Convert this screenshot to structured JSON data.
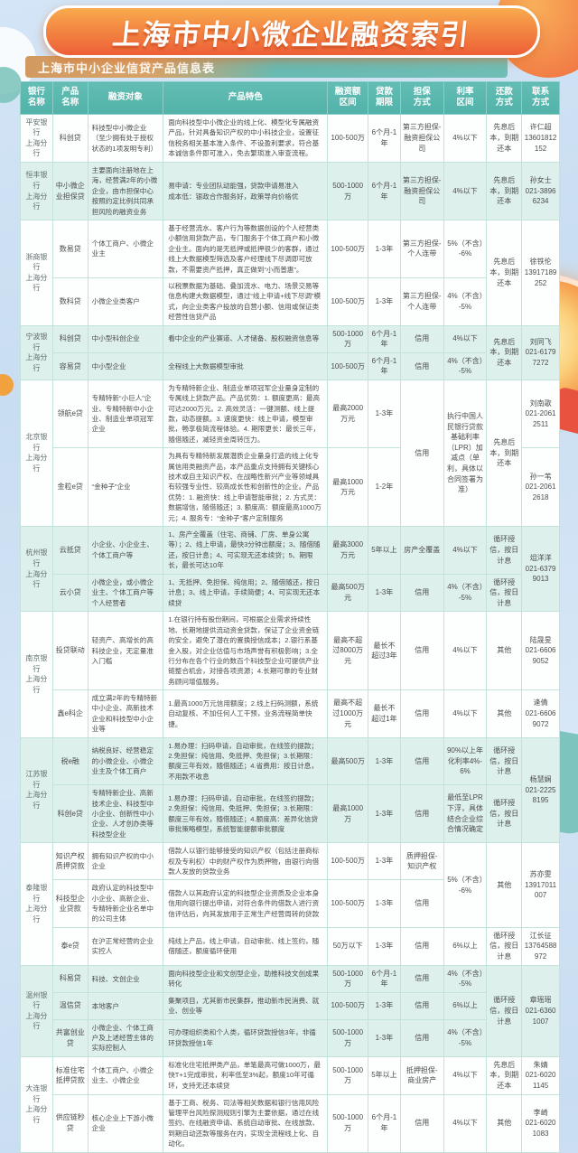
{
  "page": {
    "title": "上海市中小微企业融资索引",
    "caption": "上海市中小企业信贷产品信息表"
  },
  "accent_colors": {
    "banner_orange": "#ee5f38",
    "header_teal": "#57b6ad",
    "tint_row": "#def0ec",
    "page_blue": "#cfe2f4"
  },
  "table": {
    "headers": [
      "银行\n名称",
      "产品\n名称",
      "融资对象",
      "产品特色",
      "融资额\n区间",
      "贷款\n期限",
      "担保\n方式",
      "利率\n区间",
      "还款\n方式",
      "联系\n方式"
    ],
    "column_keys": [
      "product",
      "target",
      "features",
      "amount",
      "term",
      "guarantee",
      "rate",
      "repay",
      "contact"
    ],
    "banks": [
      {
        "name": "平安银行\n上海分行",
        "tint": false,
        "rows": [
          [
            "科创贷",
            "科技型中小微企业\n（至少拥有处于授权状态的1项发明专利）",
            "面向科技型中小微企业的线上化、模型化专属融资产品，针对具备知识产权的中小科技企业，设置征信税务相关基本准入条件、不设盈利要求，符合基本诚信条件即可准入，免去繁琐准入审查流程。",
            "100-500万",
            "6个月-1年",
            "第三方担保-\n融资担保公司",
            "4%以下",
            "先息后本，到期还本",
            "许仁超\n13601812152"
          ]
        ]
      },
      {
        "name": "恒丰银行\n上海分行",
        "tint": true,
        "rows": [
          [
            "中小微企业担保贷",
            "主要面向注册地在上海，经营满2年的小微企业，由市担保中心按照约定比例共同承担风险的融资业务",
            "易申请：专业团队动能强，贷款申请易准入\n成本低：银政合作服务好，政策导向价格优",
            "500-1000万",
            "6个月-1年",
            "第三方担保-\n融资担保公司",
            "4%以下",
            "先息后本，到期还本",
            "孙女士\n021-38966234"
          ]
        ]
      },
      {
        "name": "浙商银行\n上海分行",
        "tint": false,
        "rows": [
          [
            "数易贷",
            "个体工商户、小微企业主",
            "基于经营流水、客户行为等数据创设的个人经营类小额信用贷款产品，专门服务于个体工商户和小微企业主。面向的是无抵押或抵押很少的客群，通过线上大数据模型筛选及客户经理线下尽调即可放款，不需要资产抵押，真正做到“小而普惠”。",
            "100-500万",
            "1-3年",
            "第三方担保-\n个人连带",
            "5%（不含）-6%",
            {
              "t": "先息后本，到期还本",
              "rs": 2
            },
            {
              "t": "徐铁伦\n13917189252",
              "rs": 2
            }
          ],
          [
            "数科贷",
            "小微企业类客户",
            "以税票数据为基础、叠加流水、电力、场景交易等信息构建大数据模型，通过“线上申请+线下尽调”模式，向企业类客户投放的自营小额、信用或保证类经营性信贷产品",
            "100-500万",
            "1-3年",
            "第三方担保-\n个人连带",
            "4%（不含）-5%",
            null,
            null
          ]
        ]
      },
      {
        "name": "宁波银行\n上海分行",
        "tint": true,
        "rows": [
          [
            "科创贷",
            "中小型科创企业",
            "看中企业的产业赛道、人才储备、股权融资信息等",
            "500-1000万",
            "6个月-1年",
            "信用",
            "4%以下",
            {
              "t": "先息后本，到期还本",
              "rs": 2
            },
            {
              "t": "刘同飞\n021-61797272",
              "rs": 2
            }
          ],
          [
            "容易贷",
            "中小型企业",
            "全程线上大数据模型审批",
            "100-500万",
            "6个月-1年",
            "信用",
            "4%（不含）-5%",
            null,
            null
          ]
        ]
      },
      {
        "name": "北京银行\n上海分行",
        "tint": false,
        "rows": [
          [
            "领航e贷",
            "专精特新“小巨人”企业、专精特新中小企业、制造业单项冠军企业",
            "为专精特新企业、制造业单项冠军企业量身定制的专属线上贷款产品。产品优势：1. 额度更高：最高可达2000万元。2. 高效灵活：一键测额、线上提款，动态提额。3. 速度更快：线上申请，模型审批，畅享极简流程体验。4. 期限更长：最长三年，随借随还，减轻资金周转压力。",
            "最高2000万元",
            "1-3年",
            {
              "t": "信用",
              "rs": 2
            },
            {
              "t": "执行中国人民银行贷款基础利率（LPR）加减点（单利，具体以合同签署为准）",
              "rs": 2
            },
            {
              "t": "先息后本，到期还本",
              "rs": 2
            },
            "刘南歌\n021-20612511"
          ],
          [
            "金粒e贷",
            "“金种子”企业",
            "为具有专精特新发展潜质企业量身打造的线上化专属信用类融资产品，本产品重点支持拥有关键核心技术或自主知识产权、在战略性新兴产业等领域具有较强专业性、较高成长性和创新性的企业。产品优势：1. 融资快：线上申请智能审批；2. 方式灵：数据增信，随借随还；3. 额度高：额度最高1000万元；4. 服务专：“金种子”客户定制服务",
            "最高1000万元",
            "1-2年",
            null,
            null,
            null,
            "孙一苇\n021-20612618"
          ]
        ]
      },
      {
        "name": "杭州银行\n上海分行",
        "tint": true,
        "rows": [
          [
            "云抵贷",
            "小企业、小企业主、个体工商户等",
            "1、房产全覆盖（住宅、商铺、厂房、单身公寓等）；2、线上申请，最快3分钟出额度；3、随借随还，按日计息；4、可实现无还本续贷；5、期限长，最长可达10年",
            "最高3000万元",
            "5年以上",
            "房产全覆盖",
            "4%以下",
            "循环授信，按日计息",
            {
              "t": "俎洋洋\n021-63799013",
              "rs": 2
            }
          ],
          [
            "云小贷",
            "小微企业，或小微企业主、个体工商户等个人经营者",
            "1、无抵押、免担保、纯信用；2、随借随还，按日计息；3、线上申请，手续简便；4、可实现无还本续贷",
            "最高500万元",
            "1-3年",
            "信用",
            "4%（不含）-5%",
            "循环授信，按日计息",
            null
          ]
        ]
      },
      {
        "name": "南京银行\n上海分行",
        "tint": false,
        "rows": [
          [
            "投贷联动",
            "轻资产、高增长的高科技企业，无定量准入门槛",
            "1.在银行持有股份期间，可根据企业需求持续性地、长期地提供流动资金贷款，保证了企业资金链的安全，避免了潜在的置换授信成本；2.银行系基金入股，对企业估值与市场声誉有积极影响；3.全行分布在各个行业的数百个科技型企业可提供产业链整合机会，对接各项资源；4.长期可靠的专业财务顾问增值服务。",
            "最高不超过8000万元",
            "最长不超过3年",
            "信用",
            "4%以下",
            "其他",
            "陆晟旻\n021-66069052"
          ],
          [
            "鑫e科企",
            "成立满2年的专精特新中小企业、高新技术企业和科技型中小企业等",
            "1.最高1000万元信用额度；2.线上扫码测额，系统自动复核、不加任何人工干预，业务流程简单快捷。",
            "最高不超过1000万元",
            "最长不超过1年",
            "信用",
            "4%以下",
            "其他",
            "逄倩\n021-66069072"
          ]
        ]
      },
      {
        "name": "江苏银行\n上海分行",
        "tint": true,
        "rows": [
          [
            "税e融",
            "纳税良好、经营稳定的小微企业、小微企业主及个体工商户",
            "1.易办理：扫码申请，自动审批，在线签约提款；2.免担保：纯信用、免抵押、免担保；3.长期限：额度三年有效，随借随还；4.省费用：按日计息，不用款不收息",
            "最高500万",
            "1-3年",
            "信用",
            "90%以上年化利率4%-6%",
            "循环授信，按日计息",
            {
              "t": "杨慧娴\n021-22258195",
              "rs": 2
            }
          ],
          [
            "科创e贷",
            "专精特新企业、高新技术企业、科技型中小企业、创新性中小企业、人才创办类等科技型企业",
            "1.易办理：扫码申请，自动审批，在线签约提款；2.免担保：纯信用、免抵押、免担保；3.长期限：额度三年有效，随借随还；4.额度高：差异化信贷审批策略模型，系统智能提额审批额度",
            "最高1000万",
            "1-3年",
            "信用",
            "最低至LPR下浮，具体结合企业综合情况确定",
            "循环授信，按日计息",
            null
          ]
        ]
      },
      {
        "name": "泰隆银行\n上海分行",
        "tint": false,
        "rows": [
          [
            "知识产权质押贷款",
            "拥有知识产权的中小企业",
            "借款人以银行能够接受的知识产权（包括注册商标权及专利权）中的财产权作为质押物，由银行向借款人发放的贷款业务",
            "100-500万",
            "1-3年",
            "质押担保-\n知识产权",
            {
              "t": "5%（不含）-6%",
              "rs": 2
            },
            {
              "t": "其他",
              "rs": 2
            },
            {
              "t": "苏亦雯\n13917011007",
              "rs": 2
            }
          ],
          [
            "科技型企业贷款",
            "政府认定的科技型中小企业、高新企业、专精特新企业名单中的公司主体",
            "借款人以其政府认定的科技型企业资质及企业本身信用向银行提出申请，对符合条件的借款人进行资信评估后，向其发放用于正常生产经营周转的贷款",
            "100-500万",
            "1-3年",
            "信用",
            null,
            null,
            null
          ],
          [
            "泰e贷",
            "在沪正常经营的企业实控人",
            "纯线上产品，线上申请，自动审批、线上签约，随借随还，额度循环使用",
            "50万以下",
            "1-3年",
            "信用",
            "6%以上",
            "循环授信，按日计息",
            "江长征\n13764588972"
          ]
        ]
      },
      {
        "name": "温州银行\n上海分行",
        "tint": true,
        "rows": [
          [
            "科易贷",
            "科技、文创企业",
            "面向科技型企业和文创型企业，助推科技文创成果转化",
            "500-1000万",
            "6个月-1年",
            "信用",
            "4%（不含）-5%",
            {
              "t": "循环授信，按日计息",
              "rs": 3
            },
            {
              "t": "章瑶瑶\n021-63601007",
              "rs": 3
            }
          ],
          [
            "温信贷",
            "本地客户",
            "集聚项目，尤其新市民集群，推动新市民消费、就业、创业等",
            "100-500万",
            "1-3年",
            "信用",
            "6%以上",
            null,
            null
          ],
          [
            "共富创业贷",
            "小微企业、个体工商户及上述经营主体的实际控制人",
            "可办理组织类和个人类，循环贷款授信3年，非循环贷款授信1年",
            "500-1000万",
            "1-3年",
            "信用",
            "4%（不含）-5%",
            null,
            null
          ]
        ]
      },
      {
        "name": "大连银行\n上海分行",
        "tint": false,
        "rows": [
          [
            "标准住宅抵押贷款",
            "个体工商户、小微企业主、小微企业",
            "标准化住宅抵押类产品，单笔最高可做1000万，最快T+1完成审批，利率低至3%起，额度10年可循环，支持无还本续贷",
            "500-1000万",
            "5年以上",
            "抵押担保-\n商业房产",
            "4%以下",
            "先息后本，到期还本",
            "朱婧\n021-60201145"
          ],
          [
            "供应链秒贷",
            "核心企业上下游小微企业",
            "基于工商、税务、司法等相关数据和银行信用风险管理平台风险探测规则引擎为主要依据，通过在线签约、在线融资申请、系统自动审批、在线放款、到期自动还款等服务在内，实现全流程线上化、自动化。",
            "500-1000万",
            "6个月-1年",
            "信用",
            "4%以下",
            "其他",
            "李崎\n021-60201083"
          ]
        ]
      }
    ]
  }
}
